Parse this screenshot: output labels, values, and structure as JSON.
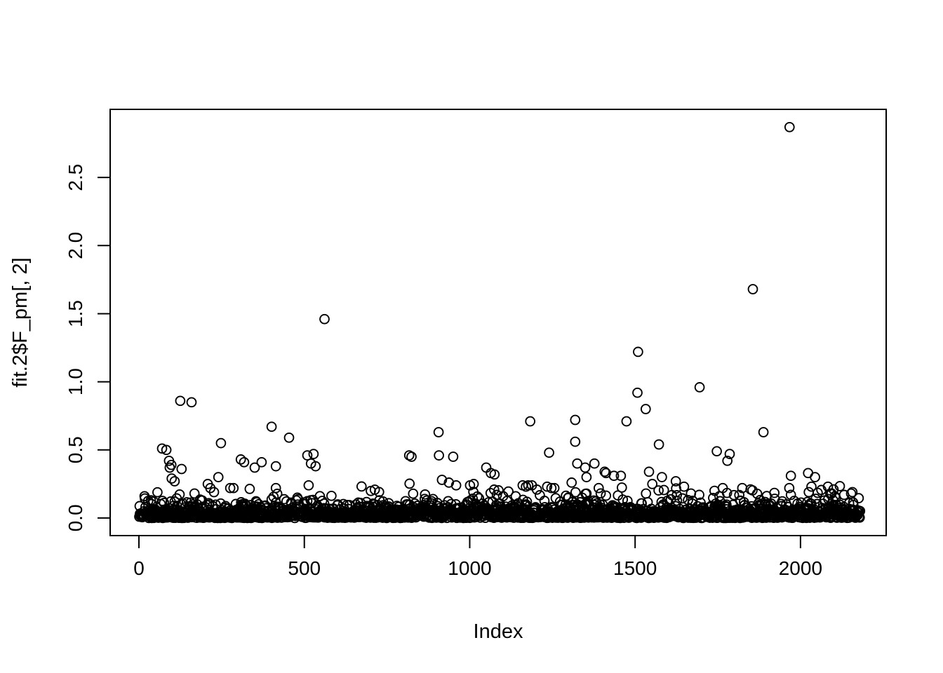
{
  "figure": {
    "background": "#ffffff",
    "foreground": "#000000"
  },
  "chart_data": {
    "type": "scatter",
    "title": "",
    "xlabel": "Index",
    "ylabel": "fit.2$F_pm[, 2]",
    "xlim": [
      -87,
      2259
    ],
    "ylim": [
      -0.129,
      3.0
    ],
    "grid": false,
    "legend": null,
    "x_ticks": [
      0,
      500,
      1000,
      1500,
      2000
    ],
    "x_tick_labels": [
      "0",
      "500",
      "1000",
      "1500",
      "2000"
    ],
    "y_ticks": [
      0,
      0.5,
      1.0,
      1.5,
      2.0,
      2.5
    ],
    "y_tick_labels": [
      "0.0",
      "0.5",
      "1.0",
      "1.5",
      "2.0",
      "2.5"
    ],
    "marker": {
      "shape": "open-circle",
      "color": "#000000",
      "radius": 6.4,
      "stroke_width": 1.9
    },
    "n_points": 2180,
    "outliers": [
      [
        125,
        0.86
      ],
      [
        159,
        0.85
      ],
      [
        70,
        0.51
      ],
      [
        83,
        0.5
      ],
      [
        91,
        0.42
      ],
      [
        98,
        0.39
      ],
      [
        93,
        0.37
      ],
      [
        129,
        0.36
      ],
      [
        99,
        0.29
      ],
      [
        108,
        0.27
      ],
      [
        168,
        0.18
      ],
      [
        208,
        0.25
      ],
      [
        216,
        0.22
      ],
      [
        227,
        0.19
      ],
      [
        240,
        0.3
      ],
      [
        248,
        0.55
      ],
      [
        276,
        0.22
      ],
      [
        286,
        0.22
      ],
      [
        308,
        0.43
      ],
      [
        318,
        0.41
      ],
      [
        350,
        0.37
      ],
      [
        371,
        0.41
      ],
      [
        401,
        0.67
      ],
      [
        414,
        0.38
      ],
      [
        414,
        0.22
      ],
      [
        454,
        0.59
      ],
      [
        509,
        0.46
      ],
      [
        513,
        0.24
      ],
      [
        520,
        0.4
      ],
      [
        528,
        0.47
      ],
      [
        534,
        0.38
      ],
      [
        561,
        1.46
      ],
      [
        817,
        0.46
      ],
      [
        824,
        0.45
      ],
      [
        906,
        0.63
      ],
      [
        907,
        0.46
      ],
      [
        916,
        0.28
      ],
      [
        937,
        0.26
      ],
      [
        950,
        0.45
      ],
      [
        959,
        0.24
      ],
      [
        1001,
        0.24
      ],
      [
        1012,
        0.25
      ],
      [
        1050,
        0.37
      ],
      [
        1064,
        0.33
      ],
      [
        1075,
        0.32
      ],
      [
        1082,
        0.17
      ],
      [
        1101,
        0.16
      ],
      [
        1160,
        0.24
      ],
      [
        1170,
        0.23
      ],
      [
        1177,
        0.24
      ],
      [
        1183,
        0.71
      ],
      [
        1188,
        0.24
      ],
      [
        1234,
        0.23
      ],
      [
        1240,
        0.48
      ],
      [
        1247,
        0.22
      ],
      [
        1256,
        0.22
      ],
      [
        1308,
        0.26
      ],
      [
        1319,
        0.72
      ],
      [
        1319,
        0.56
      ],
      [
        1325,
        0.4
      ],
      [
        1349,
        0.37
      ],
      [
        1353,
        0.3
      ],
      [
        1377,
        0.4
      ],
      [
        1390,
        0.22
      ],
      [
        1408,
        0.34
      ],
      [
        1412,
        0.33
      ],
      [
        1436,
        0.31
      ],
      [
        1457,
        0.31
      ],
      [
        1474,
        0.71
      ],
      [
        1507,
        0.92
      ],
      [
        1509,
        1.22
      ],
      [
        1532,
        0.8
      ],
      [
        1542,
        0.34
      ],
      [
        1552,
        0.25
      ],
      [
        1572,
        0.54
      ],
      [
        1581,
        0.3
      ],
      [
        1623,
        0.27
      ],
      [
        1648,
        0.23
      ],
      [
        1669,
        0.18
      ],
      [
        1694,
        0.17
      ],
      [
        1695,
        0.96
      ],
      [
        1740,
        0.2
      ],
      [
        1747,
        0.49
      ],
      [
        1765,
        0.22
      ],
      [
        1779,
        0.42
      ],
      [
        1786,
        0.47
      ],
      [
        1824,
        0.22
      ],
      [
        1849,
        0.21
      ],
      [
        1856,
        1.68
      ],
      [
        1888,
        0.63
      ],
      [
        1966,
        0.22
      ],
      [
        1967,
        2.87
      ],
      [
        1971,
        0.31
      ],
      [
        1971,
        0.17
      ],
      [
        2023,
        0.33
      ],
      [
        2025,
        0.19
      ],
      [
        2033,
        0.23
      ],
      [
        2044,
        0.3
      ],
      [
        2083,
        0.23
      ],
      [
        2090,
        0.18
      ],
      [
        2100,
        0.21
      ],
      [
        2132,
        0.17
      ],
      [
        2153,
        0.18
      ],
      [
        2157,
        0.19
      ]
    ],
    "dense_band": {
      "description": "baseline cluster of remaining points hugging zero",
      "n": 2180,
      "x_start": 1,
      "x_end": 2180,
      "distribution": "exponential",
      "scale": 0.042,
      "cap": 0.26,
      "seed": 123456789
    }
  }
}
